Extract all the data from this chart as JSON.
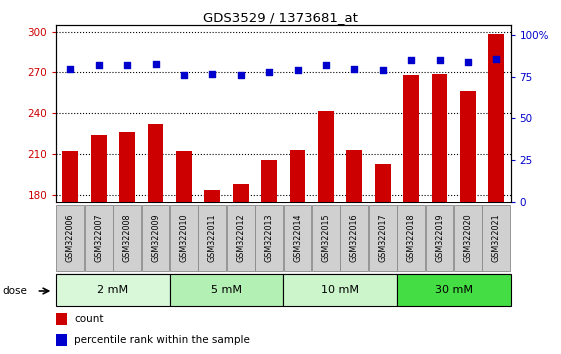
{
  "title": "GDS3529 / 1373681_at",
  "samples": [
    "GSM322006",
    "GSM322007",
    "GSM322008",
    "GSM322009",
    "GSM322010",
    "GSM322011",
    "GSM322012",
    "GSM322013",
    "GSM322014",
    "GSM322015",
    "GSM322016",
    "GSM322017",
    "GSM322018",
    "GSM322019",
    "GSM322020",
    "GSM322021"
  ],
  "counts": [
    212,
    224,
    226,
    232,
    212,
    184,
    188,
    206,
    213,
    242,
    213,
    203,
    268,
    269,
    256,
    298
  ],
  "percentiles": [
    80,
    82,
    82,
    83,
    76,
    77,
    76,
    78,
    79,
    82,
    80,
    79,
    85,
    85,
    84,
    86
  ],
  "dose_groups": [
    {
      "label": "2 mM",
      "start": 0,
      "end": 3,
      "color": "#d9f7d9"
    },
    {
      "label": "5 mM",
      "start": 4,
      "end": 7,
      "color": "#b3f0b3"
    },
    {
      "label": "10 mM",
      "start": 8,
      "end": 11,
      "color": "#ccf5cc"
    },
    {
      "label": "30 mM",
      "start": 12,
      "end": 15,
      "color": "#44dd44"
    }
  ],
  "ylim_left": [
    175,
    305
  ],
  "yticks_left": [
    180,
    210,
    240,
    270,
    300
  ],
  "ylim_right": [
    0,
    106.25
  ],
  "yticks_right": [
    0,
    25,
    50,
    75,
    100
  ],
  "bar_color": "#cc0000",
  "dot_color": "#0000cc",
  "bar_width": 0.55,
  "axis_label_color_left": "#cc0000",
  "axis_label_color_right": "#0000cc",
  "grid_color": "#000000",
  "yright_label": "100%",
  "sample_box_color": "#d0d0d0",
  "sample_box_edge": "#888888"
}
